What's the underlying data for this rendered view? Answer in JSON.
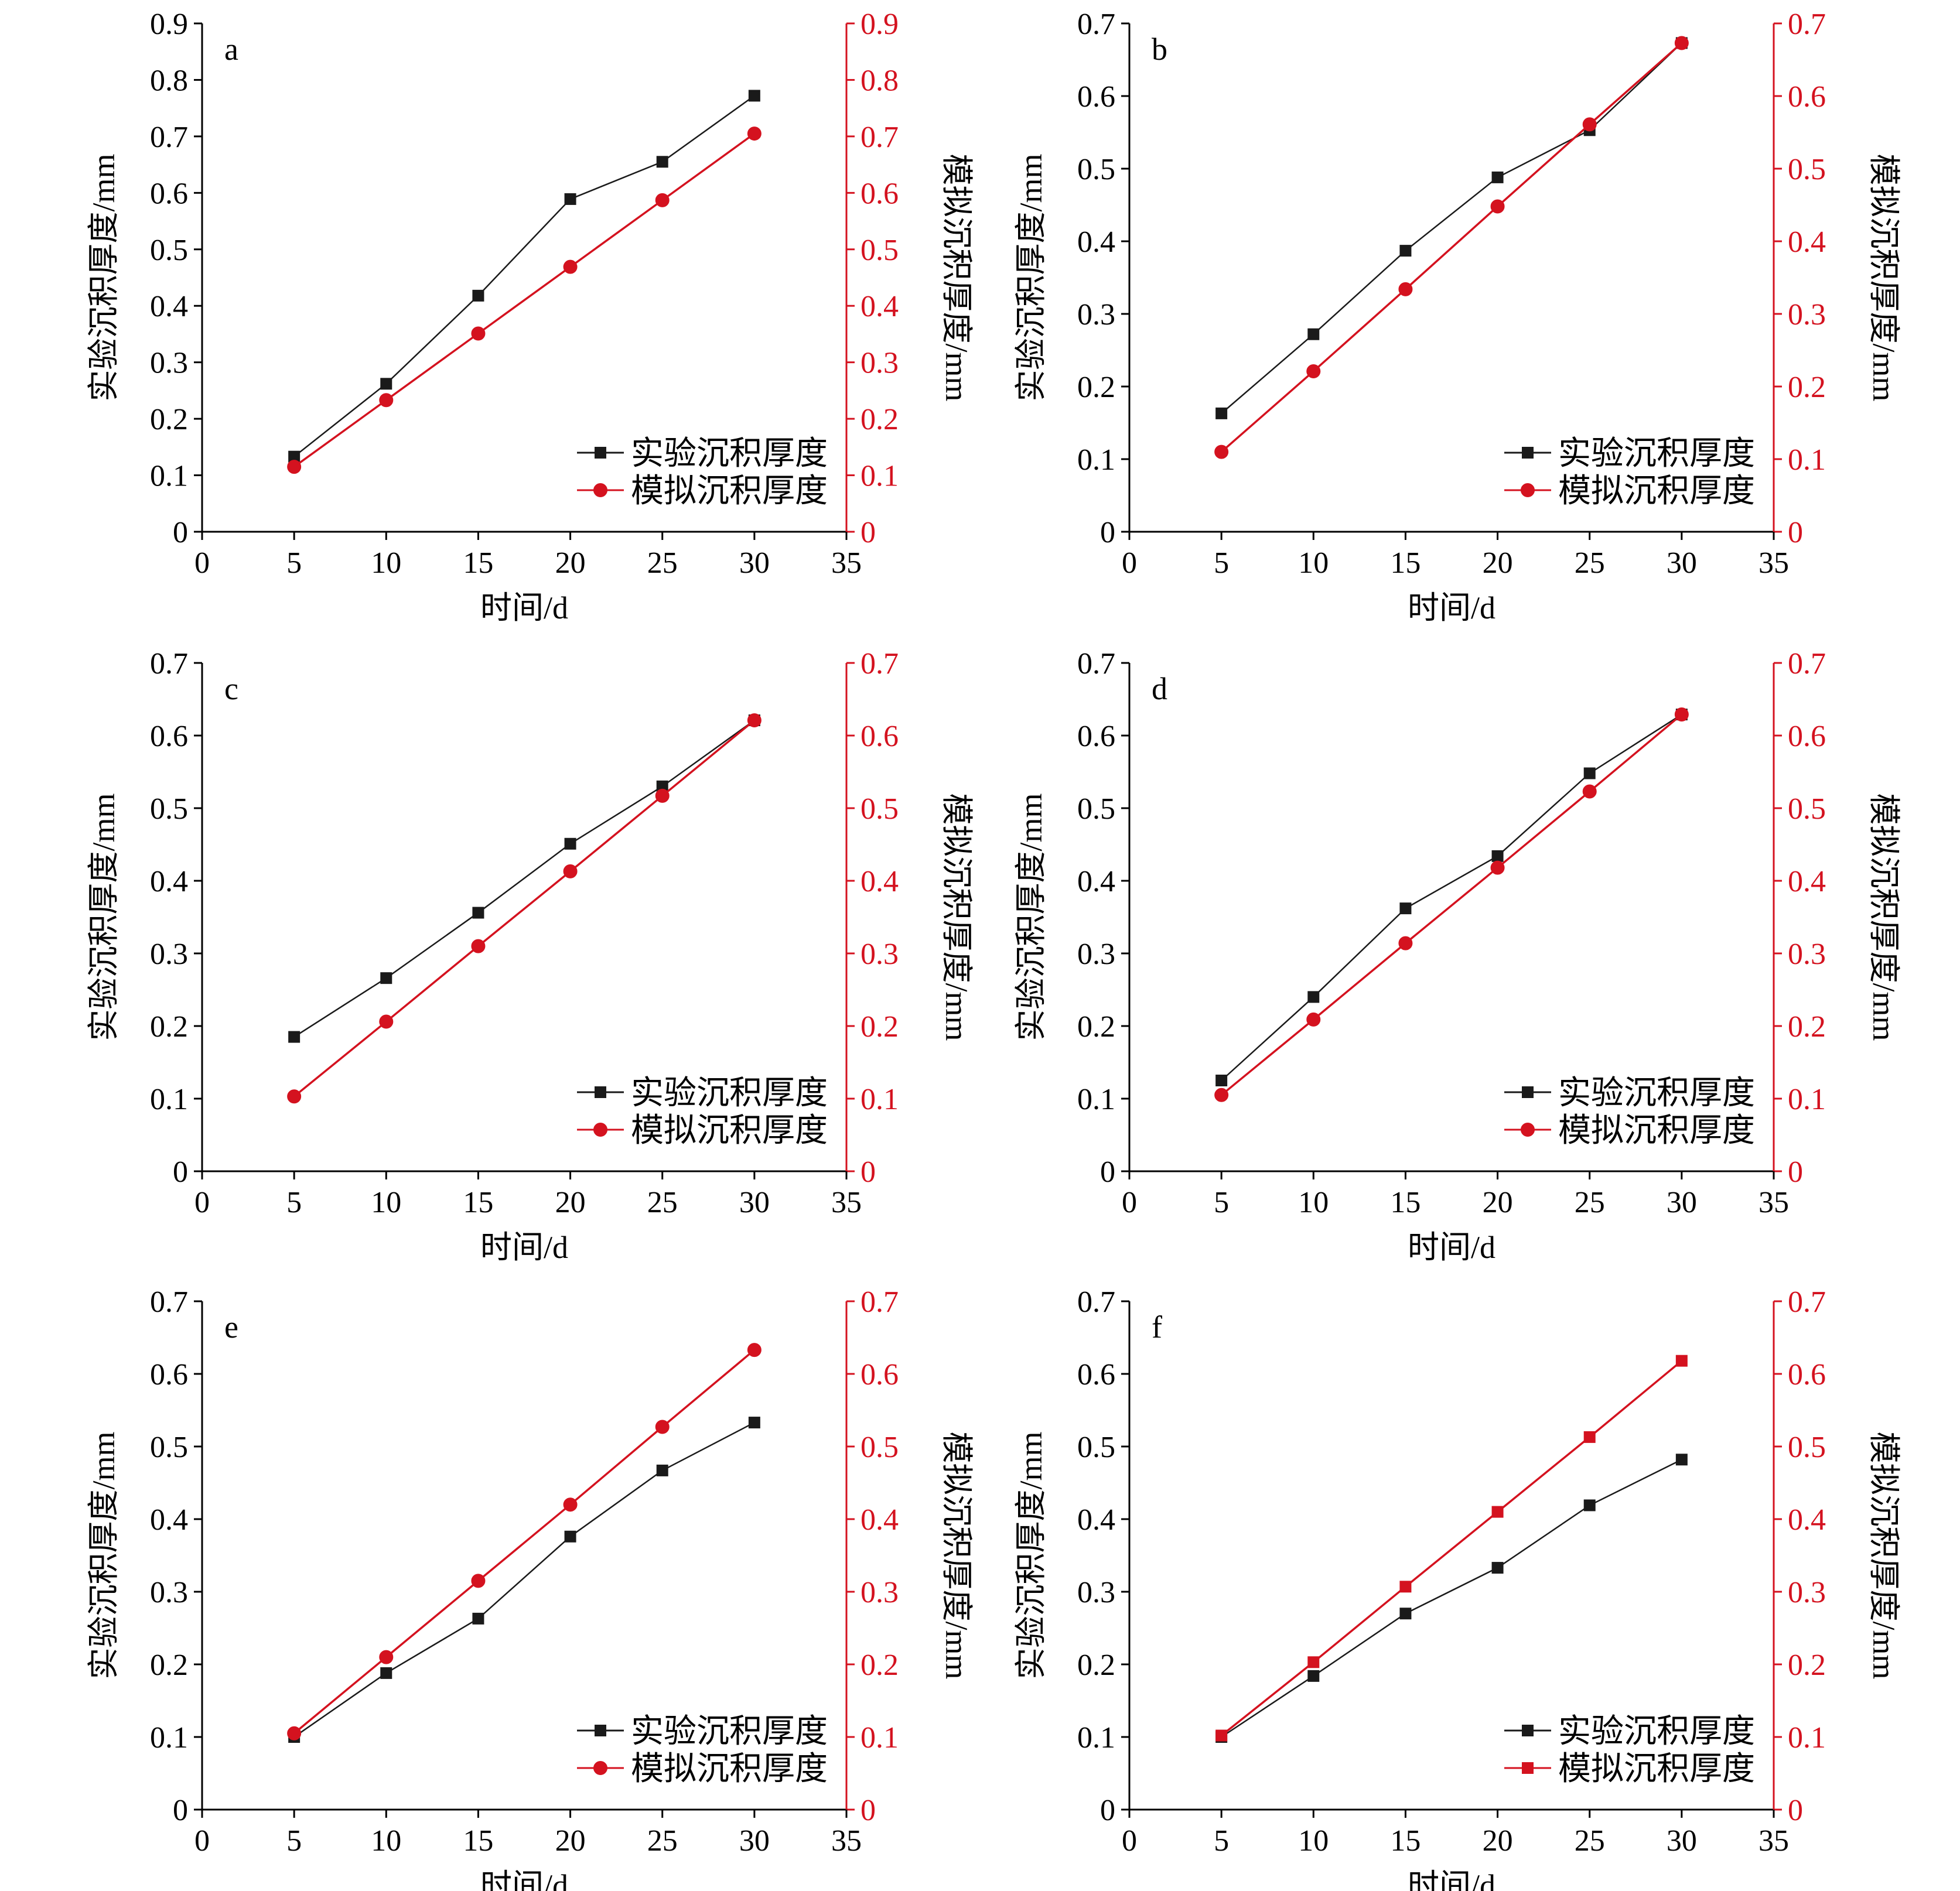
{
  "colors": {
    "experiment": "#1a1a1a",
    "simulation": "#d4121f",
    "axis_right": "#d4121f",
    "axis_left": "#000000"
  },
  "chart_data": [
    {
      "type": "line",
      "panel": "a",
      "x": [
        5,
        10,
        15,
        20,
        25,
        30
      ],
      "xlabel": "时间/d",
      "ylabel_left": "实验沉积厚度/mm",
      "ylabel_right": "模拟沉积厚度/mm",
      "xlim": [
        0,
        35
      ],
      "xticks": [
        "0",
        "5",
        "10",
        "15",
        "20",
        "25",
        "30",
        "35"
      ],
      "ylim": [
        0,
        0.9
      ],
      "yticks": [
        "0",
        "0.1",
        "0.2",
        "0.3",
        "0.4",
        "0.5",
        "0.6",
        "0.7",
        "0.8",
        "0.9"
      ],
      "legend_position": "bottom-right",
      "series": [
        {
          "name": "实验沉积厚度",
          "marker": "square",
          "color": "#1a1a1a",
          "values": [
            0.133,
            0.262,
            0.418,
            0.589,
            0.655,
            0.772
          ]
        },
        {
          "name": "模拟沉积厚度",
          "marker": "circle",
          "color": "#d4121f",
          "values": [
            0.115,
            0.233,
            0.351,
            0.469,
            0.587,
            0.705
          ]
        }
      ]
    },
    {
      "type": "line",
      "panel": "b",
      "x": [
        5,
        10,
        15,
        20,
        25,
        30
      ],
      "xlabel": "时间/d",
      "ylabel_left": "实验沉积厚度/mm",
      "ylabel_right": "模拟沉积厚度/mm",
      "xlim": [
        0,
        35
      ],
      "xticks": [
        "0",
        "5",
        "10",
        "15",
        "20",
        "25",
        "30",
        "35"
      ],
      "ylim": [
        0,
        0.7
      ],
      "yticks": [
        "0",
        "0.1",
        "0.2",
        "0.3",
        "0.4",
        "0.5",
        "0.6",
        "0.7"
      ],
      "legend_position": "bottom-right",
      "series": [
        {
          "name": "实验沉积厚度",
          "marker": "square",
          "color": "#1a1a1a",
          "values": [
            0.163,
            0.272,
            0.387,
            0.488,
            0.553,
            0.673
          ]
        },
        {
          "name": "模拟沉积厚度",
          "marker": "circle",
          "color": "#d4121f",
          "values": [
            0.11,
            0.221,
            0.334,
            0.448,
            0.561,
            0.673
          ]
        }
      ]
    },
    {
      "type": "line",
      "panel": "c",
      "x": [
        5,
        10,
        15,
        20,
        25,
        30
      ],
      "xlabel": "时间/d",
      "ylabel_left": "实验沉积厚度/mm",
      "ylabel_right": "模拟沉积厚度/mm",
      "xlim": [
        0,
        35
      ],
      "xticks": [
        "0",
        "5",
        "10",
        "15",
        "20",
        "25",
        "30",
        "35"
      ],
      "ylim": [
        0,
        0.7
      ],
      "yticks": [
        "0",
        "0.1",
        "0.2",
        "0.3",
        "0.4",
        "0.5",
        "0.6",
        "0.7"
      ],
      "legend_position": "bottom-right",
      "series": [
        {
          "name": "实验沉积厚度",
          "marker": "square",
          "color": "#1a1a1a",
          "values": [
            0.185,
            0.266,
            0.356,
            0.451,
            0.53,
            0.621
          ]
        },
        {
          "name": "模拟沉积厚度",
          "marker": "circle",
          "color": "#d4121f",
          "values": [
            0.103,
            0.206,
            0.31,
            0.413,
            0.517,
            0.621
          ]
        }
      ]
    },
    {
      "type": "line",
      "panel": "d",
      "x": [
        5,
        10,
        15,
        20,
        25,
        30
      ],
      "xlabel": "时间/d",
      "ylabel_left": "实验沉积厚度/mm",
      "ylabel_right": "模拟沉积厚度/mm",
      "xlim": [
        0,
        35
      ],
      "xticks": [
        "0",
        "5",
        "10",
        "15",
        "20",
        "25",
        "30",
        "35"
      ],
      "ylim": [
        0,
        0.7
      ],
      "yticks": [
        "0",
        "0.1",
        "0.2",
        "0.3",
        "0.4",
        "0.5",
        "0.6",
        "0.7"
      ],
      "legend_position": "bottom-right",
      "series": [
        {
          "name": "实验沉积厚度",
          "marker": "square",
          "color": "#1a1a1a",
          "values": [
            0.125,
            0.24,
            0.362,
            0.434,
            0.548,
            0.629
          ]
        },
        {
          "name": "模拟沉积厚度",
          "marker": "circle",
          "color": "#d4121f",
          "values": [
            0.105,
            0.209,
            0.314,
            0.418,
            0.523,
            0.629
          ]
        }
      ]
    },
    {
      "type": "line",
      "panel": "e",
      "x": [
        5,
        10,
        15,
        20,
        25,
        30
      ],
      "xlabel": "时间/d",
      "ylabel_left": "实验沉积厚度/mm",
      "ylabel_right": "模拟沉积厚度/mm",
      "xlim": [
        0,
        35
      ],
      "xticks": [
        "0",
        "5",
        "10",
        "15",
        "20",
        "25",
        "30",
        "35"
      ],
      "ylim": [
        0,
        0.7
      ],
      "yticks": [
        "0",
        "0.1",
        "0.2",
        "0.3",
        "0.4",
        "0.5",
        "0.6",
        "0.7"
      ],
      "legend_position": "bottom-right",
      "series": [
        {
          "name": "实验沉积厚度",
          "marker": "square",
          "color": "#1a1a1a",
          "values": [
            0.1,
            0.188,
            0.263,
            0.376,
            0.467,
            0.533
          ]
        },
        {
          "name": "模拟沉积厚度",
          "marker": "circle",
          "color": "#d4121f",
          "values": [
            0.105,
            0.21,
            0.315,
            0.42,
            0.527,
            0.633
          ]
        }
      ]
    },
    {
      "type": "line",
      "panel": "f",
      "x": [
        5,
        10,
        15,
        20,
        25,
        30
      ],
      "xlabel": "时间/d",
      "ylabel_left": "实验沉积厚度/mm",
      "ylabel_right": "模拟沉积厚度/mm",
      "xlim": [
        0,
        35
      ],
      "xticks": [
        "0",
        "5",
        "10",
        "15",
        "20",
        "25",
        "30",
        "35"
      ],
      "ylim": [
        0,
        0.7
      ],
      "yticks": [
        "0",
        "0.1",
        "0.2",
        "0.3",
        "0.4",
        "0.5",
        "0.6",
        "0.7"
      ],
      "legend_position": "bottom-right",
      "series": [
        {
          "name": "实验沉积厚度",
          "marker": "square",
          "color": "#1a1a1a",
          "values": [
            0.1,
            0.184,
            0.27,
            0.333,
            0.419,
            0.482
          ]
        },
        {
          "name": "模拟沉积厚度",
          "marker": "square",
          "color": "#d4121f",
          "values": [
            0.102,
            0.203,
            0.307,
            0.41,
            0.513,
            0.618
          ]
        }
      ]
    }
  ]
}
